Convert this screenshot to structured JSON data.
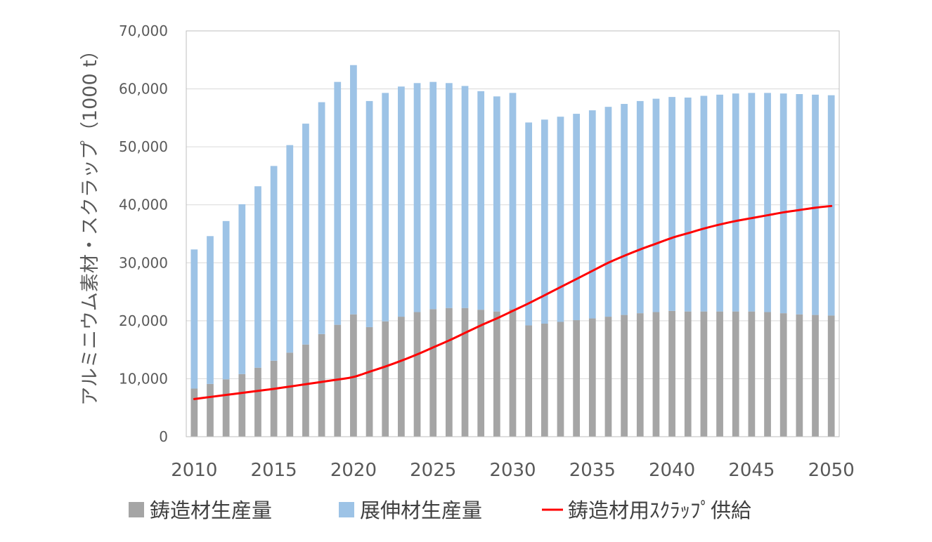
{
  "chart_data": {
    "type": "bar",
    "stacked": true,
    "title": "",
    "xlabel": "",
    "ylabel": "アルミニウム素材・スクラップ（1000 t）",
    "ylim": [
      0,
      70000
    ],
    "y_ticks": [
      "0",
      "10,000",
      "20,000",
      "30,000",
      "40,000",
      "50,000",
      "60,000",
      "70,000"
    ],
    "y_tick_values": [
      0,
      10000,
      20000,
      30000,
      40000,
      50000,
      60000,
      70000
    ],
    "x_tick_labels": [
      "2010",
      "2015",
      "2020",
      "2025",
      "2030",
      "2035",
      "2040",
      "2045",
      "2050"
    ],
    "x_tick_years": [
      2010,
      2015,
      2020,
      2025,
      2030,
      2035,
      2040,
      2045,
      2050
    ],
    "grid": true,
    "legend_position": "bottom",
    "categories": [
      2010,
      2011,
      2012,
      2013,
      2014,
      2015,
      2016,
      2017,
      2018,
      2019,
      2020,
      2021,
      2022,
      2023,
      2024,
      2025,
      2026,
      2027,
      2028,
      2029,
      2030,
      2031,
      2032,
      2033,
      2034,
      2035,
      2036,
      2037,
      2038,
      2039,
      2040,
      2041,
      2042,
      2043,
      2044,
      2045,
      2046,
      2047,
      2048,
      2049,
      2050
    ],
    "series": [
      {
        "name": "鋳造材生産量",
        "kind": "bar",
        "color": "#a5a5a5",
        "values": [
          8300,
          9100,
          9900,
          10800,
          11900,
          13100,
          14500,
          15900,
          17700,
          19300,
          21100,
          18900,
          19900,
          20700,
          21500,
          22000,
          22200,
          22200,
          21900,
          21600,
          22000,
          19200,
          19500,
          19800,
          20100,
          20400,
          20700,
          21000,
          21300,
          21500,
          21700,
          21600,
          21600,
          21600,
          21600,
          21600,
          21500,
          21300,
          21100,
          21000,
          20900
        ]
      },
      {
        "name": "展伸材生産量",
        "kind": "bar",
        "color": "#9dc3e6",
        "values": [
          24000,
          25500,
          27300,
          29300,
          31300,
          33600,
          35800,
          38100,
          40000,
          41900,
          43000,
          39000,
          39400,
          39700,
          39500,
          39200,
          38800,
          38300,
          37700,
          37100,
          37300,
          35000,
          35200,
          35400,
          35600,
          35900,
          36200,
          36400,
          36600,
          36800,
          36900,
          36900,
          37200,
          37400,
          37600,
          37700,
          37800,
          37900,
          38000,
          38000,
          38000
        ]
      },
      {
        "name": "鋳造材用ｽｸﾗｯﾌﾟ供給",
        "kind": "line",
        "color": "#ff0000",
        "values": [
          6500,
          6850,
          7200,
          7550,
          7900,
          8250,
          8650,
          9050,
          9450,
          9850,
          10300,
          11200,
          12100,
          13100,
          14200,
          15400,
          16600,
          17900,
          19200,
          20400,
          21700,
          23000,
          24400,
          25800,
          27200,
          28600,
          30000,
          31200,
          32300,
          33300,
          34300,
          35100,
          35900,
          36600,
          37200,
          37700,
          38200,
          38700,
          39100,
          39500,
          39800
        ]
      }
    ]
  }
}
